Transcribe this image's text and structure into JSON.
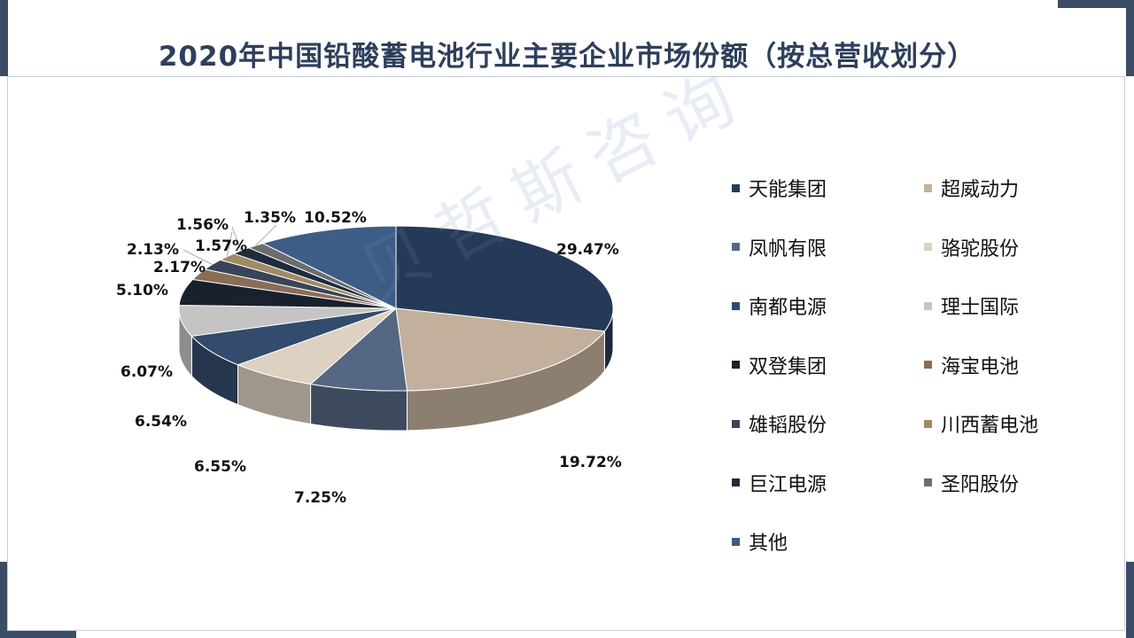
{
  "title": "2020年中国铅酸蓄电池行业主要企业市场份额（按总营收划分）",
  "watermark": "贝哲斯咨询",
  "chart_data": {
    "type": "pie",
    "title": "2020年中国铅酸蓄电池行业主要企业市场份额（按总营收划分）",
    "three_d": true,
    "legend_position": "right",
    "slices": [
      {
        "name": "天能集团",
        "value": 29.47,
        "label": "29.47%",
        "color": "#253a56"
      },
      {
        "name": "超威动力",
        "value": 19.72,
        "label": "19.72%",
        "color": "#c3b09c"
      },
      {
        "name": "凤帆有限",
        "value": 7.25,
        "label": "7.25%",
        "color": "#556783"
      },
      {
        "name": "骆驼股份",
        "value": 6.55,
        "label": "6.55%",
        "color": "#ddd2c2"
      },
      {
        "name": "南都电源",
        "value": 6.54,
        "label": "6.54%",
        "color": "#334b6c"
      },
      {
        "name": "理士国际",
        "value": 6.07,
        "label": "6.07%",
        "color": "#c4c4c4"
      },
      {
        "name": "双登集团",
        "value": 5.1,
        "label": "5.10%",
        "color": "#18212d"
      },
      {
        "name": "海宝电池",
        "value": 2.17,
        "label": "2.17%",
        "color": "#8a6d55"
      },
      {
        "name": "雄韬股份",
        "value": 2.13,
        "label": "2.13%",
        "color": "#3a4456"
      },
      {
        "name": "川西蓄电池",
        "value": 1.57,
        "label": "1.57%",
        "color": "#a08b65"
      },
      {
        "name": "巨江电源",
        "value": 1.56,
        "label": "1.56%",
        "color": "#1e2b3d"
      },
      {
        "name": "圣阳股份",
        "value": 1.35,
        "label": "1.35%",
        "color": "#6d6d6d"
      },
      {
        "name": "其他",
        "value": 10.52,
        "label": "10.52%",
        "color": "#3d5d86"
      }
    ]
  }
}
